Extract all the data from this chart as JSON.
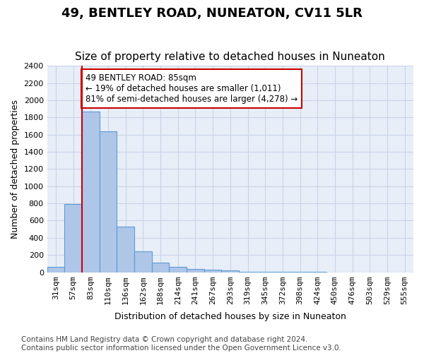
{
  "title": "49, BENTLEY ROAD, NUNEATON, CV11 5LR",
  "subtitle": "Size of property relative to detached houses in Nuneaton",
  "xlabel": "Distribution of detached houses by size in Nuneaton",
  "ylabel": "Number of detached properties",
  "footer_line1": "Contains HM Land Registry data © Crown copyright and database right 2024.",
  "footer_line2": "Contains public sector information licensed under the Open Government Licence v3.0.",
  "bin_labels": [
    "31sqm",
    "57sqm",
    "83sqm",
    "110sqm",
    "136sqm",
    "162sqm",
    "188sqm",
    "214sqm",
    "241sqm",
    "267sqm",
    "293sqm",
    "319sqm",
    "345sqm",
    "372sqm",
    "398sqm",
    "424sqm",
    "450sqm",
    "476sqm",
    "503sqm",
    "529sqm",
    "555sqm"
  ],
  "bar_heights": [
    60,
    790,
    1870,
    1640,
    530,
    240,
    110,
    60,
    40,
    25,
    20,
    5,
    3,
    2,
    1,
    1,
    0,
    0,
    0,
    0,
    0
  ],
  "bar_color": "#aec6e8",
  "bar_edge_color": "#5b9bd5",
  "red_line_x": 2,
  "annotation_text": "49 BENTLEY ROAD: 85sqm\n← 19% of detached houses are smaller (1,011)\n81% of semi-detached houses are larger (4,278) →",
  "annotation_box_color": "#ffffff",
  "annotation_box_edge_color": "#cc0000",
  "ylim": [
    0,
    2400
  ],
  "yticks": [
    0,
    200,
    400,
    600,
    800,
    1000,
    1200,
    1400,
    1600,
    1800,
    2000,
    2200,
    2400
  ],
  "grid_color": "#c8d4e8",
  "bg_color": "#e8eef8",
  "title_fontsize": 13,
  "subtitle_fontsize": 11,
  "axis_label_fontsize": 9,
  "tick_fontsize": 8,
  "footer_fontsize": 7.5
}
